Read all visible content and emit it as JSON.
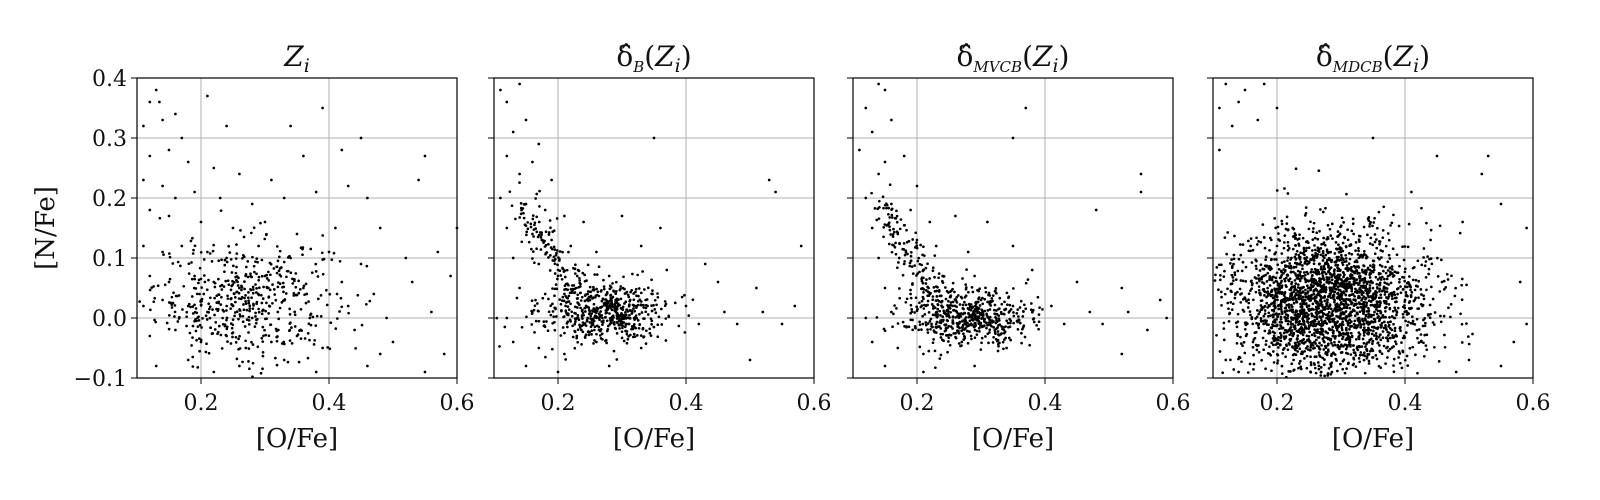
{
  "chart_data": [
    {
      "type": "scatter",
      "title": "Z_i",
      "title_parts": [
        {
          "text": "Z",
          "style": "italic"
        },
        {
          "text": "i",
          "style": "italic-sub"
        }
      ],
      "xlabel": "[O/Fe]",
      "ylabel": "[N/Fe]",
      "xlim": [
        0.1,
        0.6
      ],
      "ylim": [
        -0.1,
        0.4
      ],
      "xticks": [
        0.2,
        0.4,
        0.6
      ],
      "xtick_labels": [
        "0.2",
        "0.4",
        "0.6"
      ],
      "yticks": [
        -0.1,
        0.0,
        0.1,
        0.2,
        0.3,
        0.4
      ],
      "ytick_labels": [
        "−0.1",
        "0.0",
        "0.1",
        "0.2",
        "0.3",
        "0.4"
      ],
      "show_yticklabels": true,
      "grid": true,
      "color": "#000000",
      "points": [
        [
          0.13,
          0.38
        ],
        [
          0.12,
          0.36
        ],
        [
          0.135,
          0.36
        ],
        [
          0.16,
          0.34
        ],
        [
          0.21,
          0.37
        ],
        [
          0.39,
          0.35
        ],
        [
          0.11,
          0.32
        ],
        [
          0.14,
          0.33
        ],
        [
          0.17,
          0.3
        ],
        [
          0.24,
          0.32
        ],
        [
          0.34,
          0.32
        ],
        [
          0.45,
          0.3
        ],
        [
          0.55,
          0.27
        ],
        [
          0.12,
          0.27
        ],
        [
          0.15,
          0.28
        ],
        [
          0.18,
          0.26
        ],
        [
          0.22,
          0.25
        ],
        [
          0.26,
          0.24
        ],
        [
          0.31,
          0.23
        ],
        [
          0.36,
          0.27
        ],
        [
          0.42,
          0.28
        ],
        [
          0.43,
          0.22
        ],
        [
          0.11,
          0.23
        ],
        [
          0.14,
          0.22
        ],
        [
          0.16,
          0.2
        ],
        [
          0.19,
          0.21
        ],
        [
          0.23,
          0.2
        ],
        [
          0.28,
          0.19
        ],
        [
          0.33,
          0.2
        ],
        [
          0.38,
          0.21
        ],
        [
          0.46,
          0.2
        ],
        [
          0.54,
          0.23
        ],
        [
          0.12,
          0.18
        ],
        [
          0.15,
          0.17
        ],
        [
          0.2,
          0.16
        ],
        [
          0.25,
          0.15
        ],
        [
          0.3,
          0.16
        ],
        [
          0.35,
          0.14
        ],
        [
          0.41,
          0.15
        ],
        [
          0.48,
          0.15
        ],
        [
          0.6,
          0.15
        ],
        [
          0.11,
          0.12
        ],
        [
          0.14,
          0.11
        ],
        [
          0.17,
          0.12
        ],
        [
          0.21,
          0.11
        ],
        [
          0.24,
          0.1
        ],
        [
          0.29,
          0.12
        ],
        [
          0.34,
          0.1
        ],
        [
          0.4,
          0.11
        ],
        [
          0.45,
          0.09
        ],
        [
          0.52,
          0.1
        ],
        [
          0.57,
          0.11
        ],
        [
          0.12,
          0.07
        ],
        [
          0.15,
          0.06
        ],
        [
          0.19,
          0.07
        ],
        [
          0.22,
          0.06
        ],
        [
          0.26,
          0.05
        ],
        [
          0.3,
          0.07
        ],
        [
          0.36,
          0.05
        ],
        [
          0.42,
          0.06
        ],
        [
          0.47,
          0.04
        ],
        [
          0.53,
          0.06
        ],
        [
          0.59,
          0.07
        ],
        [
          0.11,
          0.02
        ],
        [
          0.14,
          0.03
        ],
        [
          0.18,
          0.02
        ],
        [
          0.21,
          0.01
        ],
        [
          0.25,
          0.02
        ],
        [
          0.28,
          0.0
        ],
        [
          0.32,
          0.01
        ],
        [
          0.37,
          0.0
        ],
        [
          0.43,
          0.02
        ],
        [
          0.49,
          0.0
        ],
        [
          0.56,
          0.01
        ],
        [
          0.12,
          -0.03
        ],
        [
          0.16,
          -0.02
        ],
        [
          0.2,
          -0.04
        ],
        [
          0.24,
          -0.03
        ],
        [
          0.27,
          -0.05
        ],
        [
          0.31,
          -0.04
        ],
        [
          0.35,
          -0.03
        ],
        [
          0.39,
          -0.05
        ],
        [
          0.44,
          -0.02
        ],
        [
          0.5,
          -0.04
        ],
        [
          0.58,
          -0.06
        ],
        [
          0.13,
          -0.08
        ],
        [
          0.18,
          -0.07
        ],
        [
          0.22,
          -0.09
        ],
        [
          0.26,
          -0.08
        ],
        [
          0.33,
          -0.07
        ],
        [
          0.38,
          -0.09
        ],
        [
          0.46,
          -0.08
        ],
        [
          0.55,
          -0.09
        ]
      ],
      "cluster": {
        "n": 520,
        "cx": 0.27,
        "cy": 0.03,
        "sx": 0.07,
        "sy": 0.05
      }
    },
    {
      "type": "scatter",
      "title": "δ̂_B(Z_i)",
      "title_parts": [
        {
          "text": "δ̂",
          "style": "normal"
        },
        {
          "text": "B",
          "style": "script-sub"
        },
        {
          "text": "(",
          "style": "normal"
        },
        {
          "text": "Z",
          "style": "italic"
        },
        {
          "text": "i",
          "style": "italic-sub"
        },
        {
          "text": ")",
          "style": "normal"
        }
      ],
      "xlabel": "[O/Fe]",
      "ylabel": "",
      "xlim": [
        0.1,
        0.6
      ],
      "ylim": [
        -0.1,
        0.4
      ],
      "xticks": [
        0.2,
        0.4,
        0.6
      ],
      "xtick_labels": [
        "0.2",
        "0.4",
        "0.6"
      ],
      "yticks": [
        -0.1,
        0.0,
        0.1,
        0.2,
        0.3,
        0.4
      ],
      "ytick_labels": [],
      "show_yticklabels": false,
      "grid": true,
      "color": "#000000",
      "points": [
        [
          0.11,
          0.38
        ],
        [
          0.14,
          0.39
        ],
        [
          0.12,
          0.36
        ],
        [
          0.15,
          0.33
        ],
        [
          0.13,
          0.31
        ],
        [
          0.17,
          0.29
        ],
        [
          0.35,
          0.3
        ],
        [
          0.12,
          0.27
        ],
        [
          0.16,
          0.26
        ],
        [
          0.14,
          0.24
        ],
        [
          0.19,
          0.23
        ],
        [
          0.53,
          0.23
        ],
        [
          0.54,
          0.21
        ],
        [
          0.11,
          0.2
        ],
        [
          0.15,
          0.19
        ],
        [
          0.18,
          0.18
        ],
        [
          0.21,
          0.17
        ],
        [
          0.24,
          0.16
        ],
        [
          0.3,
          0.17
        ],
        [
          0.36,
          0.15
        ],
        [
          0.12,
          0.15
        ],
        [
          0.16,
          0.14
        ],
        [
          0.19,
          0.13
        ],
        [
          0.22,
          0.12
        ],
        [
          0.26,
          0.11
        ],
        [
          0.33,
          0.12
        ],
        [
          0.43,
          0.09
        ],
        [
          0.13,
          0.1
        ],
        [
          0.17,
          0.09
        ],
        [
          0.2,
          0.08
        ],
        [
          0.23,
          0.07
        ],
        [
          0.28,
          0.07
        ],
        [
          0.37,
          0.08
        ],
        [
          0.45,
          0.06
        ],
        [
          0.51,
          0.05
        ],
        [
          0.58,
          0.12
        ],
        [
          0.14,
          0.05
        ],
        [
          0.18,
          0.04
        ],
        [
          0.21,
          0.04
        ],
        [
          0.25,
          0.03
        ],
        [
          0.29,
          0.03
        ],
        [
          0.34,
          0.02
        ],
        [
          0.4,
          0.02
        ],
        [
          0.46,
          0.01
        ],
        [
          0.52,
          0.01
        ],
        [
          0.57,
          0.02
        ],
        [
          0.12,
          0.0
        ],
        [
          0.16,
          0.01
        ],
        [
          0.42,
          -0.01
        ],
        [
          0.48,
          -0.01
        ],
        [
          0.55,
          -0.01
        ],
        [
          0.13,
          -0.04
        ],
        [
          0.17,
          -0.05
        ],
        [
          0.21,
          -0.06
        ],
        [
          0.26,
          -0.04
        ],
        [
          0.33,
          -0.05
        ],
        [
          0.15,
          -0.08
        ],
        [
          0.2,
          -0.09
        ],
        [
          0.28,
          -0.08
        ],
        [
          0.5,
          -0.07
        ]
      ],
      "cluster": {
        "n": 560,
        "cx": 0.27,
        "cy": 0.01,
        "sx": 0.05,
        "sy": 0.025
      },
      "curve": {
        "n": 140,
        "x0": 0.14,
        "x1": 0.24,
        "y0": 0.22,
        "y1": 0.04,
        "spread": 0.02
      }
    },
    {
      "type": "scatter",
      "title": "δ̂_MVCB(Z_i)",
      "title_parts": [
        {
          "text": "δ̂",
          "style": "normal"
        },
        {
          "text": "MVCB",
          "style": "script-sub"
        },
        {
          "text": "(",
          "style": "normal"
        },
        {
          "text": "Z",
          "style": "italic"
        },
        {
          "text": "i",
          "style": "italic-sub"
        },
        {
          "text": ")",
          "style": "normal"
        }
      ],
      "xlabel": "[O/Fe]",
      "ylabel": "",
      "xlim": [
        0.1,
        0.6
      ],
      "ylim": [
        -0.1,
        0.4
      ],
      "xticks": [
        0.2,
        0.4,
        0.6
      ],
      "xtick_labels": [
        "0.2",
        "0.4",
        "0.6"
      ],
      "yticks": [
        -0.1,
        0.0,
        0.1,
        0.2,
        0.3,
        0.4
      ],
      "ytick_labels": [],
      "show_yticklabels": false,
      "grid": true,
      "color": "#000000",
      "points": [
        [
          0.14,
          0.39
        ],
        [
          0.15,
          0.38
        ],
        [
          0.12,
          0.35
        ],
        [
          0.16,
          0.33
        ],
        [
          0.13,
          0.31
        ],
        [
          0.37,
          0.35
        ],
        [
          0.35,
          0.3
        ],
        [
          0.11,
          0.28
        ],
        [
          0.15,
          0.26
        ],
        [
          0.18,
          0.27
        ],
        [
          0.14,
          0.24
        ],
        [
          0.2,
          0.22
        ],
        [
          0.55,
          0.24
        ],
        [
          0.55,
          0.21
        ],
        [
          0.12,
          0.2
        ],
        [
          0.16,
          0.19
        ],
        [
          0.19,
          0.18
        ],
        [
          0.22,
          0.16
        ],
        [
          0.26,
          0.17
        ],
        [
          0.31,
          0.16
        ],
        [
          0.13,
          0.15
        ],
        [
          0.17,
          0.14
        ],
        [
          0.2,
          0.13
        ],
        [
          0.23,
          0.12
        ],
        [
          0.28,
          0.11
        ],
        [
          0.35,
          0.12
        ],
        [
          0.48,
          0.18
        ],
        [
          0.14,
          0.1
        ],
        [
          0.18,
          0.09
        ],
        [
          0.21,
          0.08
        ],
        [
          0.24,
          0.07
        ],
        [
          0.29,
          0.07
        ],
        [
          0.38,
          0.08
        ],
        [
          0.45,
          0.06
        ],
        [
          0.52,
          0.05
        ],
        [
          0.58,
          0.03
        ],
        [
          0.15,
          0.05
        ],
        [
          0.19,
          0.04
        ],
        [
          0.22,
          0.04
        ],
        [
          0.26,
          0.03
        ],
        [
          0.3,
          0.03
        ],
        [
          0.35,
          0.02
        ],
        [
          0.41,
          0.02
        ],
        [
          0.47,
          0.01
        ],
        [
          0.53,
          0.01
        ],
        [
          0.59,
          0.0
        ],
        [
          0.12,
          0.0
        ],
        [
          0.16,
          0.01
        ],
        [
          0.43,
          -0.01
        ],
        [
          0.49,
          -0.01
        ],
        [
          0.56,
          -0.02
        ],
        [
          0.13,
          -0.04
        ],
        [
          0.17,
          -0.05
        ],
        [
          0.21,
          -0.06
        ],
        [
          0.27,
          -0.04
        ],
        [
          0.34,
          -0.05
        ],
        [
          0.15,
          -0.08
        ],
        [
          0.21,
          -0.09
        ],
        [
          0.29,
          -0.08
        ],
        [
          0.52,
          -0.06
        ]
      ],
      "cluster": {
        "n": 560,
        "cx": 0.28,
        "cy": 0.0,
        "sx": 0.05,
        "sy": 0.025
      },
      "curve": {
        "n": 150,
        "x0": 0.14,
        "x1": 0.25,
        "y0": 0.22,
        "y1": 0.03,
        "spread": 0.02
      }
    },
    {
      "type": "scatter",
      "title": "δ̂_MDCB(Z_i)",
      "title_parts": [
        {
          "text": "δ̂",
          "style": "normal"
        },
        {
          "text": "MDCB",
          "style": "script-sub"
        },
        {
          "text": "(",
          "style": "normal"
        },
        {
          "text": "Z",
          "style": "italic"
        },
        {
          "text": "i",
          "style": "italic-sub"
        },
        {
          "text": ")",
          "style": "normal"
        }
      ],
      "xlabel": "[O/Fe]",
      "ylabel": "",
      "xlim": [
        0.1,
        0.6
      ],
      "ylim": [
        -0.1,
        0.4
      ],
      "xticks": [
        0.2,
        0.4,
        0.6
      ],
      "xtick_labels": [
        "0.2",
        "0.4",
        "0.6"
      ],
      "yticks": [
        -0.1,
        0.0,
        0.1,
        0.2,
        0.3,
        0.4
      ],
      "ytick_labels": [],
      "show_yticklabels": false,
      "grid": true,
      "color": "#000000",
      "points": [
        [
          0.12,
          0.39
        ],
        [
          0.15,
          0.38
        ],
        [
          0.18,
          0.39
        ],
        [
          0.11,
          0.35
        ],
        [
          0.14,
          0.36
        ],
        [
          0.2,
          0.35
        ],
        [
          0.13,
          0.32
        ],
        [
          0.17,
          0.33
        ],
        [
          0.35,
          0.3
        ],
        [
          0.11,
          0.28
        ],
        [
          0.45,
          0.27
        ],
        [
          0.53,
          0.27
        ],
        [
          0.52,
          0.24
        ],
        [
          0.55,
          0.19
        ],
        [
          0.59,
          0.15
        ],
        [
          0.49,
          0.16
        ],
        [
          0.44,
          0.13
        ],
        [
          0.41,
          0.21
        ],
        [
          0.58,
          0.06
        ],
        [
          0.59,
          -0.01
        ],
        [
          0.57,
          -0.04
        ],
        [
          0.55,
          -0.08
        ],
        [
          0.5,
          -0.07
        ],
        [
          0.12,
          -0.07
        ],
        [
          0.14,
          -0.09
        ],
        [
          0.48,
          -0.09
        ]
      ],
      "cluster": {
        "n": 2600,
        "cx": 0.28,
        "cy": 0.025,
        "sx": 0.075,
        "sy": 0.06
      }
    }
  ]
}
